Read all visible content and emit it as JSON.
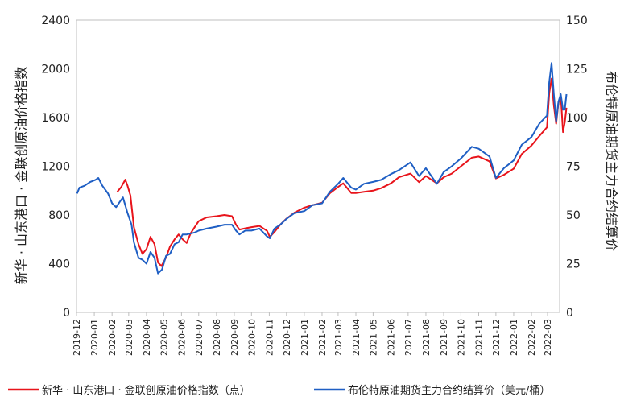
{
  "chart_data": {
    "type": "line",
    "ylabel_left": "新华 · 山东港口 · 金联创原油价格指数",
    "ylabel_right": "布伦特原油期货主力合约结算价",
    "yleft_lim": [
      0,
      2400
    ],
    "yleft_ticks": [
      "0",
      "400",
      "800",
      "1200",
      "1600",
      "2000",
      "2400"
    ],
    "yright_lim": [
      0,
      150
    ],
    "yright_ticks": [
      "0",
      "25",
      "50",
      "75",
      "100",
      "125",
      "150"
    ],
    "x_ticks": [
      "2019-12",
      "2020-01",
      "2020-02",
      "2020-03",
      "2020-04",
      "2020-05",
      "2020-06",
      "2020-07",
      "2020-08",
      "2020-09",
      "2020-10",
      "2020-11",
      "2020-12",
      "2021-01",
      "2021-02",
      "2021-03",
      "2021-04",
      "2021-05",
      "2021-06",
      "2021-07",
      "2021-08",
      "2021-09",
      "2021-10",
      "2021-11",
      "2021-12",
      "2022-01",
      "2022-02",
      "2022-03"
    ],
    "grid": "none",
    "legend_position": "bottom",
    "series": [
      {
        "name": "新华 · 山东港口 · 金联创原油价格指数（点）",
        "axis": "left",
        "color": "#e8141b",
        "points": [
          [
            "2020-02-10",
            990
          ],
          [
            "2020-02-17",
            1030
          ],
          [
            "2020-02-24",
            1090
          ],
          [
            "2020-02-28",
            1040
          ],
          [
            "2020-03-04",
            960
          ],
          [
            "2020-03-10",
            700
          ],
          [
            "2020-03-18",
            560
          ],
          [
            "2020-03-25",
            480
          ],
          [
            "2020-04-01",
            520
          ],
          [
            "2020-04-08",
            620
          ],
          [
            "2020-04-15",
            560
          ],
          [
            "2020-04-21",
            410
          ],
          [
            "2020-04-27",
            380
          ],
          [
            "2020-05-05",
            450
          ],
          [
            "2020-05-12",
            540
          ],
          [
            "2020-05-20",
            600
          ],
          [
            "2020-05-27",
            640
          ],
          [
            "2020-06-03",
            600
          ],
          [
            "2020-06-10",
            570
          ],
          [
            "2020-06-17",
            650
          ],
          [
            "2020-06-24",
            700
          ],
          [
            "2020-07-01",
            750
          ],
          [
            "2020-07-15",
            780
          ],
          [
            "2020-08-01",
            790
          ],
          [
            "2020-08-15",
            800
          ],
          [
            "2020-08-28",
            790
          ],
          [
            "2020-09-04",
            720
          ],
          [
            "2020-09-10",
            680
          ],
          [
            "2020-09-20",
            690
          ],
          [
            "2020-10-01",
            700
          ],
          [
            "2020-10-15",
            710
          ],
          [
            "2020-10-28",
            670
          ],
          [
            "2020-11-02",
            620
          ],
          [
            "2020-11-10",
            660
          ],
          [
            "2020-11-20",
            720
          ],
          [
            "2020-12-01",
            770
          ],
          [
            "2020-12-15",
            820
          ],
          [
            "2021-01-01",
            860
          ],
          [
            "2021-01-15",
            880
          ],
          [
            "2021-02-01",
            900
          ],
          [
            "2021-02-15",
            980
          ],
          [
            "2021-03-01",
            1030
          ],
          [
            "2021-03-10",
            1060
          ],
          [
            "2021-03-24",
            980
          ],
          [
            "2021-04-01",
            980
          ],
          [
            "2021-04-15",
            990
          ],
          [
            "2021-05-01",
            1000
          ],
          [
            "2021-05-15",
            1020
          ],
          [
            "2021-06-01",
            1060
          ],
          [
            "2021-06-15",
            1110
          ],
          [
            "2021-07-05",
            1140
          ],
          [
            "2021-07-20",
            1070
          ],
          [
            "2021-08-01",
            1120
          ],
          [
            "2021-08-20",
            1060
          ],
          [
            "2021-09-01",
            1110
          ],
          [
            "2021-09-15",
            1140
          ],
          [
            "2021-10-01",
            1200
          ],
          [
            "2021-10-20",
            1270
          ],
          [
            "2021-11-01",
            1280
          ],
          [
            "2021-11-20",
            1240
          ],
          [
            "2021-12-01",
            1100
          ],
          [
            "2021-12-15",
            1130
          ],
          [
            "2022-01-01",
            1180
          ],
          [
            "2022-01-15",
            1300
          ],
          [
            "2022-02-01",
            1370
          ],
          [
            "2022-02-15",
            1450
          ],
          [
            "2022-02-28",
            1520
          ],
          [
            "2022-03-04",
            1800
          ],
          [
            "2022-03-08",
            1920
          ],
          [
            "2022-03-12",
            1700
          ],
          [
            "2022-03-16",
            1550
          ],
          [
            "2022-03-20",
            1720
          ],
          [
            "2022-03-24",
            1780
          ],
          [
            "2022-03-28",
            1480
          ],
          [
            "2022-03-31",
            1560
          ],
          [
            "2022-04-03",
            1680
          ]
        ]
      },
      {
        "name": "布伦特原油期货主力合约结算价（美元/桶）",
        "axis": "right",
        "color": "#1f5fc4",
        "points": [
          [
            "2019-12-02",
            61
          ],
          [
            "2019-12-06",
            64
          ],
          [
            "2019-12-15",
            65
          ],
          [
            "2019-12-25",
            67
          ],
          [
            "2020-01-03",
            68
          ],
          [
            "2020-01-08",
            69
          ],
          [
            "2020-01-15",
            65
          ],
          [
            "2020-01-25",
            61
          ],
          [
            "2020-02-01",
            56
          ],
          [
            "2020-02-08",
            54
          ],
          [
            "2020-02-15",
            57
          ],
          [
            "2020-02-20",
            59
          ],
          [
            "2020-02-28",
            51
          ],
          [
            "2020-03-06",
            45
          ],
          [
            "2020-03-10",
            36
          ],
          [
            "2020-03-18",
            28
          ],
          [
            "2020-03-25",
            27
          ],
          [
            "2020-04-01",
            25
          ],
          [
            "2020-04-08",
            31
          ],
          [
            "2020-04-15",
            28
          ],
          [
            "2020-04-21",
            20
          ],
          [
            "2020-04-28",
            22
          ],
          [
            "2020-05-05",
            29
          ],
          [
            "2020-05-12",
            30
          ],
          [
            "2020-05-20",
            35
          ],
          [
            "2020-05-27",
            36
          ],
          [
            "2020-06-03",
            40
          ],
          [
            "2020-06-10",
            40
          ],
          [
            "2020-06-24",
            41
          ],
          [
            "2020-07-01",
            42
          ],
          [
            "2020-07-15",
            43
          ],
          [
            "2020-08-01",
            44
          ],
          [
            "2020-08-15",
            45
          ],
          [
            "2020-08-28",
            45
          ],
          [
            "2020-09-04",
            42
          ],
          [
            "2020-09-10",
            40
          ],
          [
            "2020-09-20",
            42
          ],
          [
            "2020-10-01",
            42
          ],
          [
            "2020-10-15",
            43
          ],
          [
            "2020-10-28",
            39
          ],
          [
            "2020-11-02",
            38
          ],
          [
            "2020-11-10",
            43
          ],
          [
            "2020-11-20",
            45
          ],
          [
            "2020-12-01",
            48
          ],
          [
            "2020-12-15",
            51
          ],
          [
            "2021-01-01",
            52
          ],
          [
            "2021-01-15",
            55
          ],
          [
            "2021-02-01",
            56
          ],
          [
            "2021-02-15",
            62
          ],
          [
            "2021-03-01",
            66
          ],
          [
            "2021-03-10",
            69
          ],
          [
            "2021-03-24",
            64
          ],
          [
            "2021-04-01",
            63
          ],
          [
            "2021-04-15",
            66
          ],
          [
            "2021-05-01",
            67
          ],
          [
            "2021-05-15",
            68
          ],
          [
            "2021-06-01",
            71
          ],
          [
            "2021-06-15",
            73
          ],
          [
            "2021-07-05",
            77
          ],
          [
            "2021-07-20",
            70
          ],
          [
            "2021-08-01",
            74
          ],
          [
            "2021-08-20",
            66
          ],
          [
            "2021-09-01",
            72
          ],
          [
            "2021-09-15",
            75
          ],
          [
            "2021-10-01",
            79
          ],
          [
            "2021-10-20",
            85
          ],
          [
            "2021-11-01",
            84
          ],
          [
            "2021-11-20",
            80
          ],
          [
            "2021-12-01",
            69
          ],
          [
            "2021-12-15",
            74
          ],
          [
            "2022-01-01",
            78
          ],
          [
            "2022-01-15",
            86
          ],
          [
            "2022-02-01",
            90
          ],
          [
            "2022-02-15",
            97
          ],
          [
            "2022-02-28",
            101
          ],
          [
            "2022-03-04",
            118
          ],
          [
            "2022-03-08",
            128
          ],
          [
            "2022-03-12",
            112
          ],
          [
            "2022-03-16",
            98
          ],
          [
            "2022-03-20",
            108
          ],
          [
            "2022-03-24",
            112
          ],
          [
            "2022-03-28",
            104
          ],
          [
            "2022-03-31",
            104
          ],
          [
            "2022-04-03",
            112
          ]
        ]
      }
    ]
  }
}
